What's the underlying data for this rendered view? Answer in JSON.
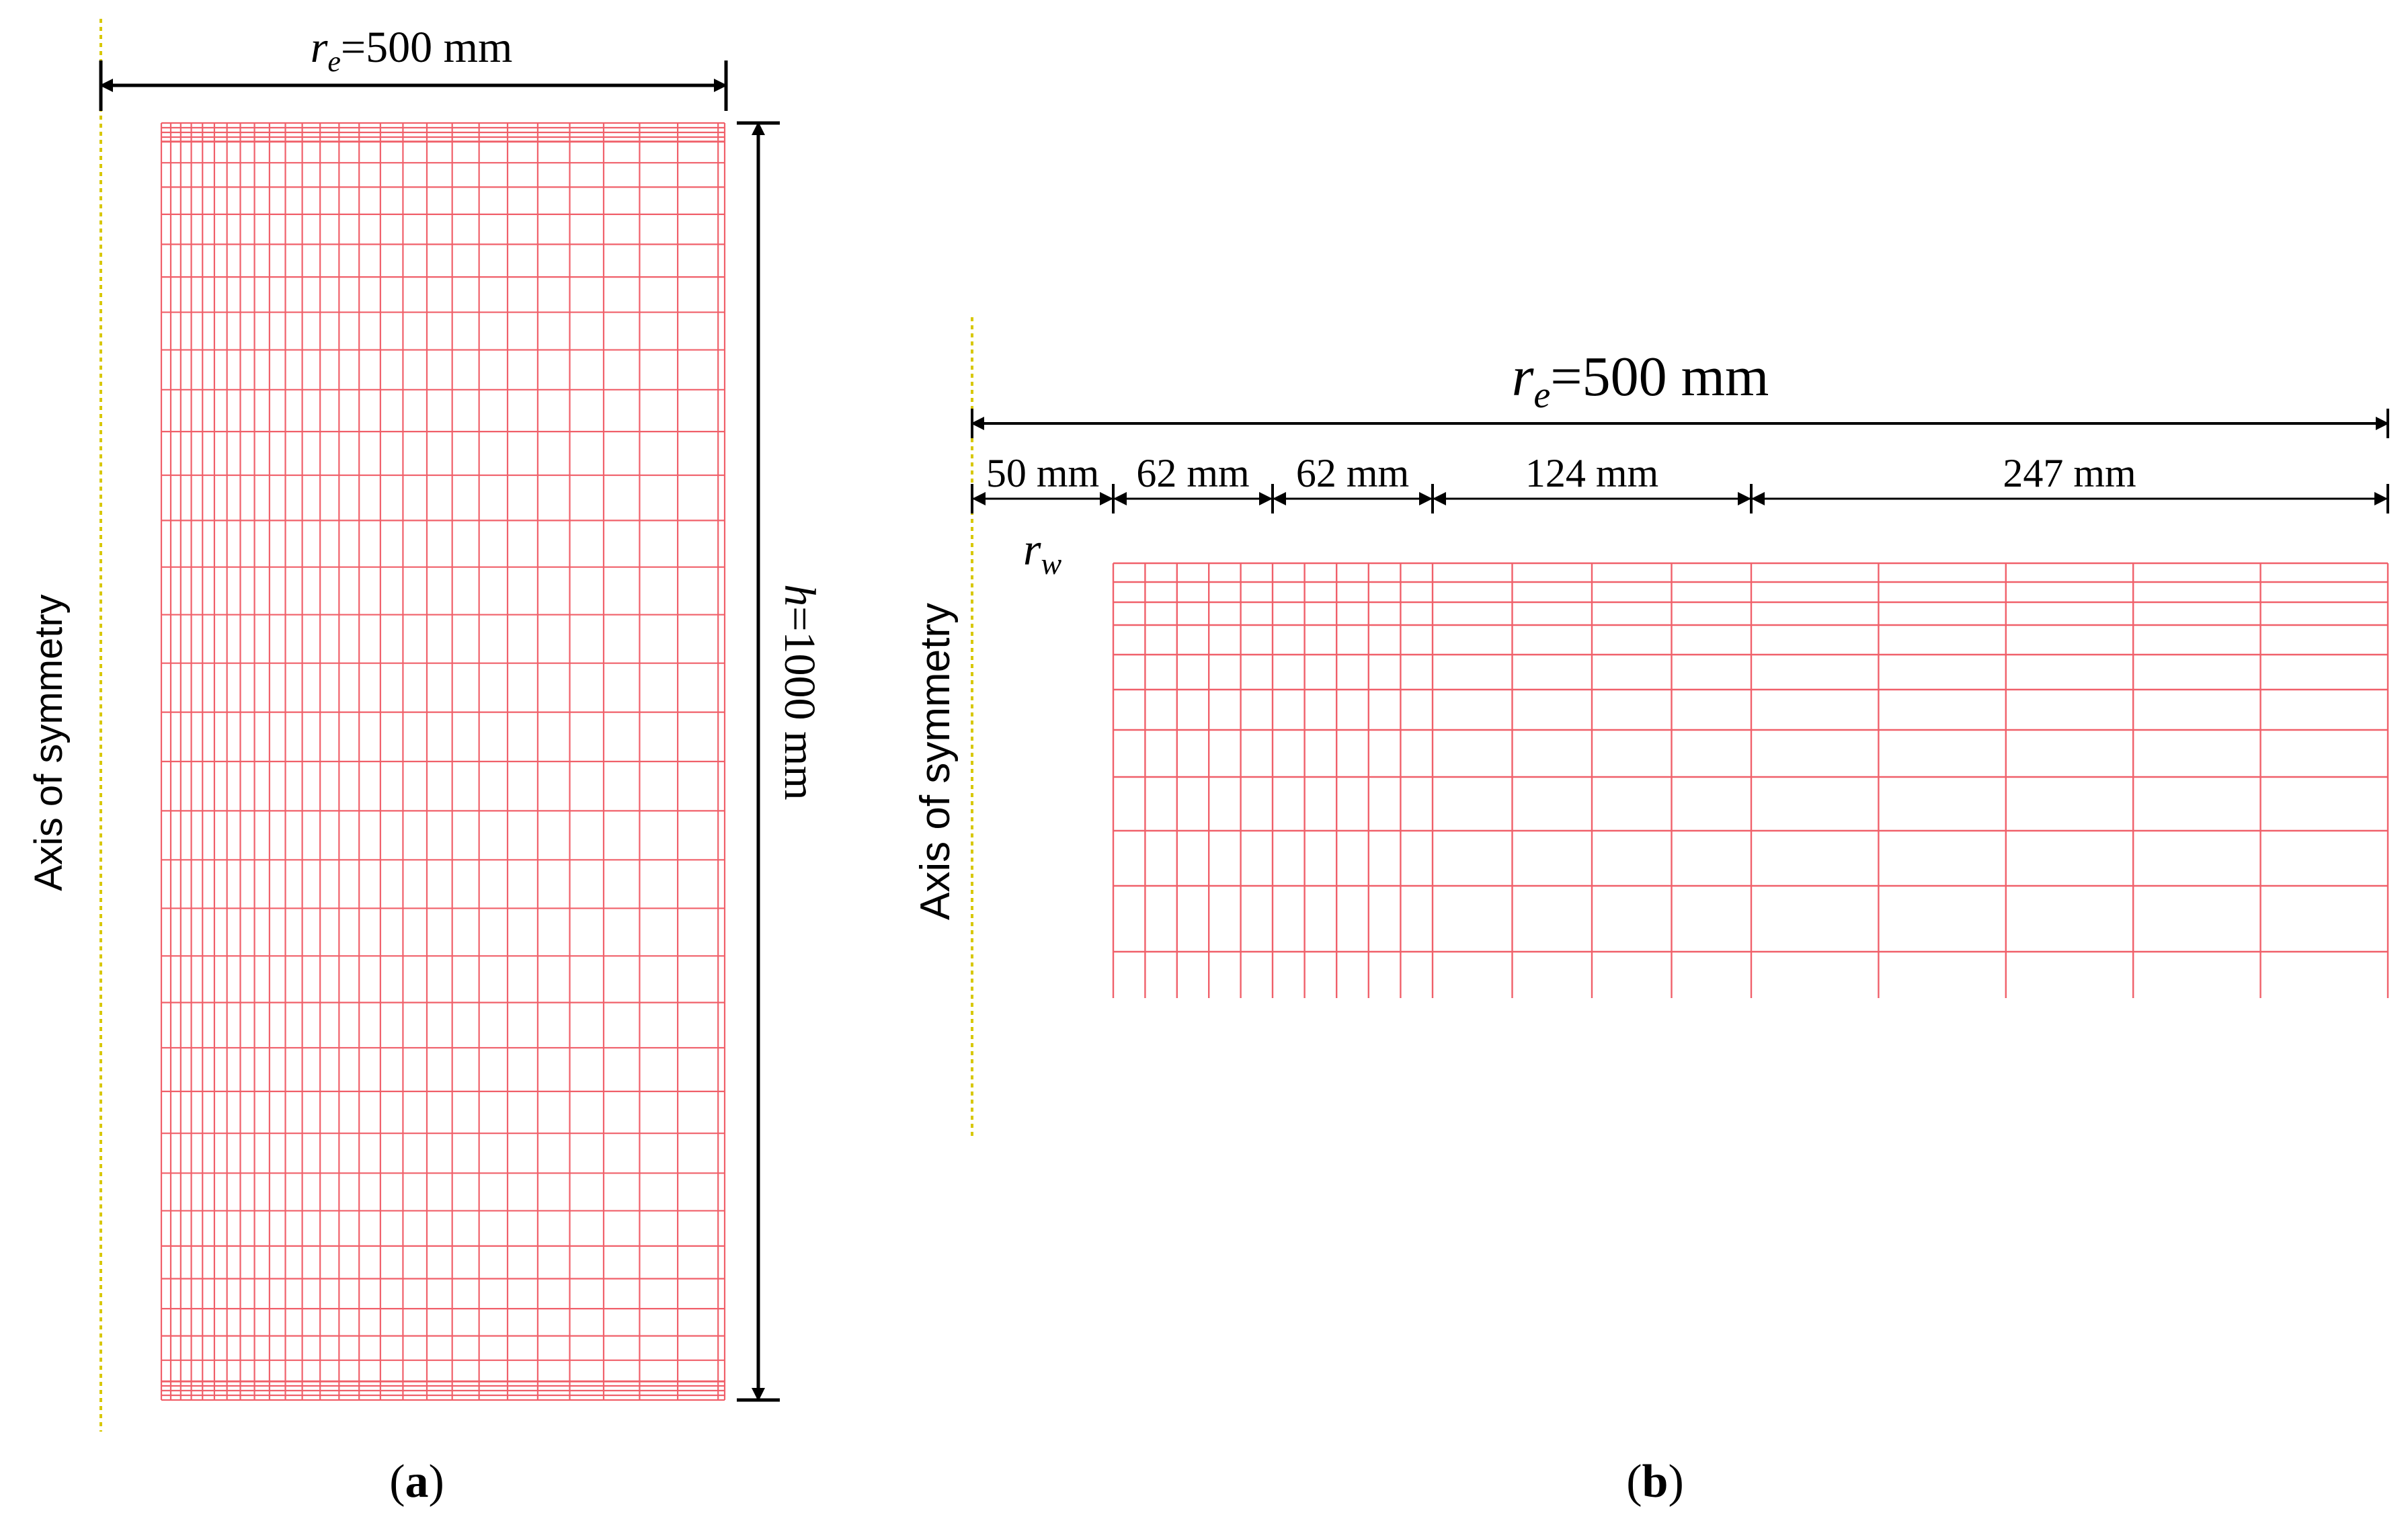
{
  "colors": {
    "mesh": "#f0606a",
    "axis_of_symmetry": "#d8c800",
    "dimension": "#000000"
  },
  "panel_a": {
    "label_open": "(",
    "label_letter": "a",
    "label_close": ")",
    "axis_label": "Axis of symmetry",
    "width_dim": {
      "symbol": "r",
      "subscript": "e",
      "value": "=500 mm"
    },
    "height_dim": {
      "symbol": "h",
      "value": "=1000 mm"
    }
  },
  "panel_b": {
    "label_open": "(",
    "label_letter": "b",
    "label_close": ")",
    "axis_label": "Axis of symmetry",
    "width_dim": {
      "symbol": "r",
      "subscript": "e",
      "value": "=500 mm"
    },
    "segments": [
      "50 mm",
      "62 mm",
      "62 mm",
      "124 mm",
      "247 mm"
    ],
    "well_radius": {
      "symbol": "r",
      "subscript": "w"
    }
  }
}
